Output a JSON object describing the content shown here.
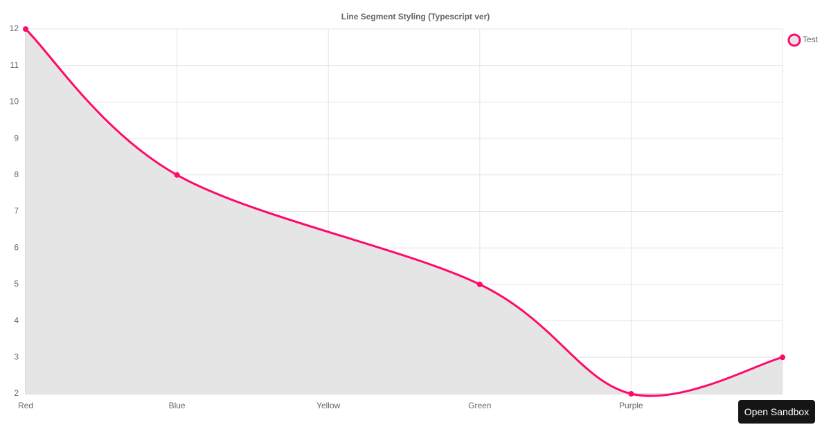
{
  "chart_data": {
    "type": "line",
    "title": "Line Segment Styling (Typescript ver)",
    "categories": [
      "Red",
      "Blue",
      "Yellow",
      "Green",
      "Purple",
      null
    ],
    "series": [
      {
        "name": "Test",
        "color": "#ff0a6c",
        "values": [
          12,
          8,
          null,
          5,
          2,
          3
        ]
      }
    ],
    "ylim": [
      2,
      12
    ],
    "yticks": [
      2,
      3,
      4,
      5,
      6,
      7,
      8,
      9,
      10,
      11,
      12
    ],
    "grid": true,
    "fill": "#e5e5e5",
    "span_gaps": true,
    "smooth": true,
    "legend": "right"
  },
  "button": "Open Sandbox"
}
